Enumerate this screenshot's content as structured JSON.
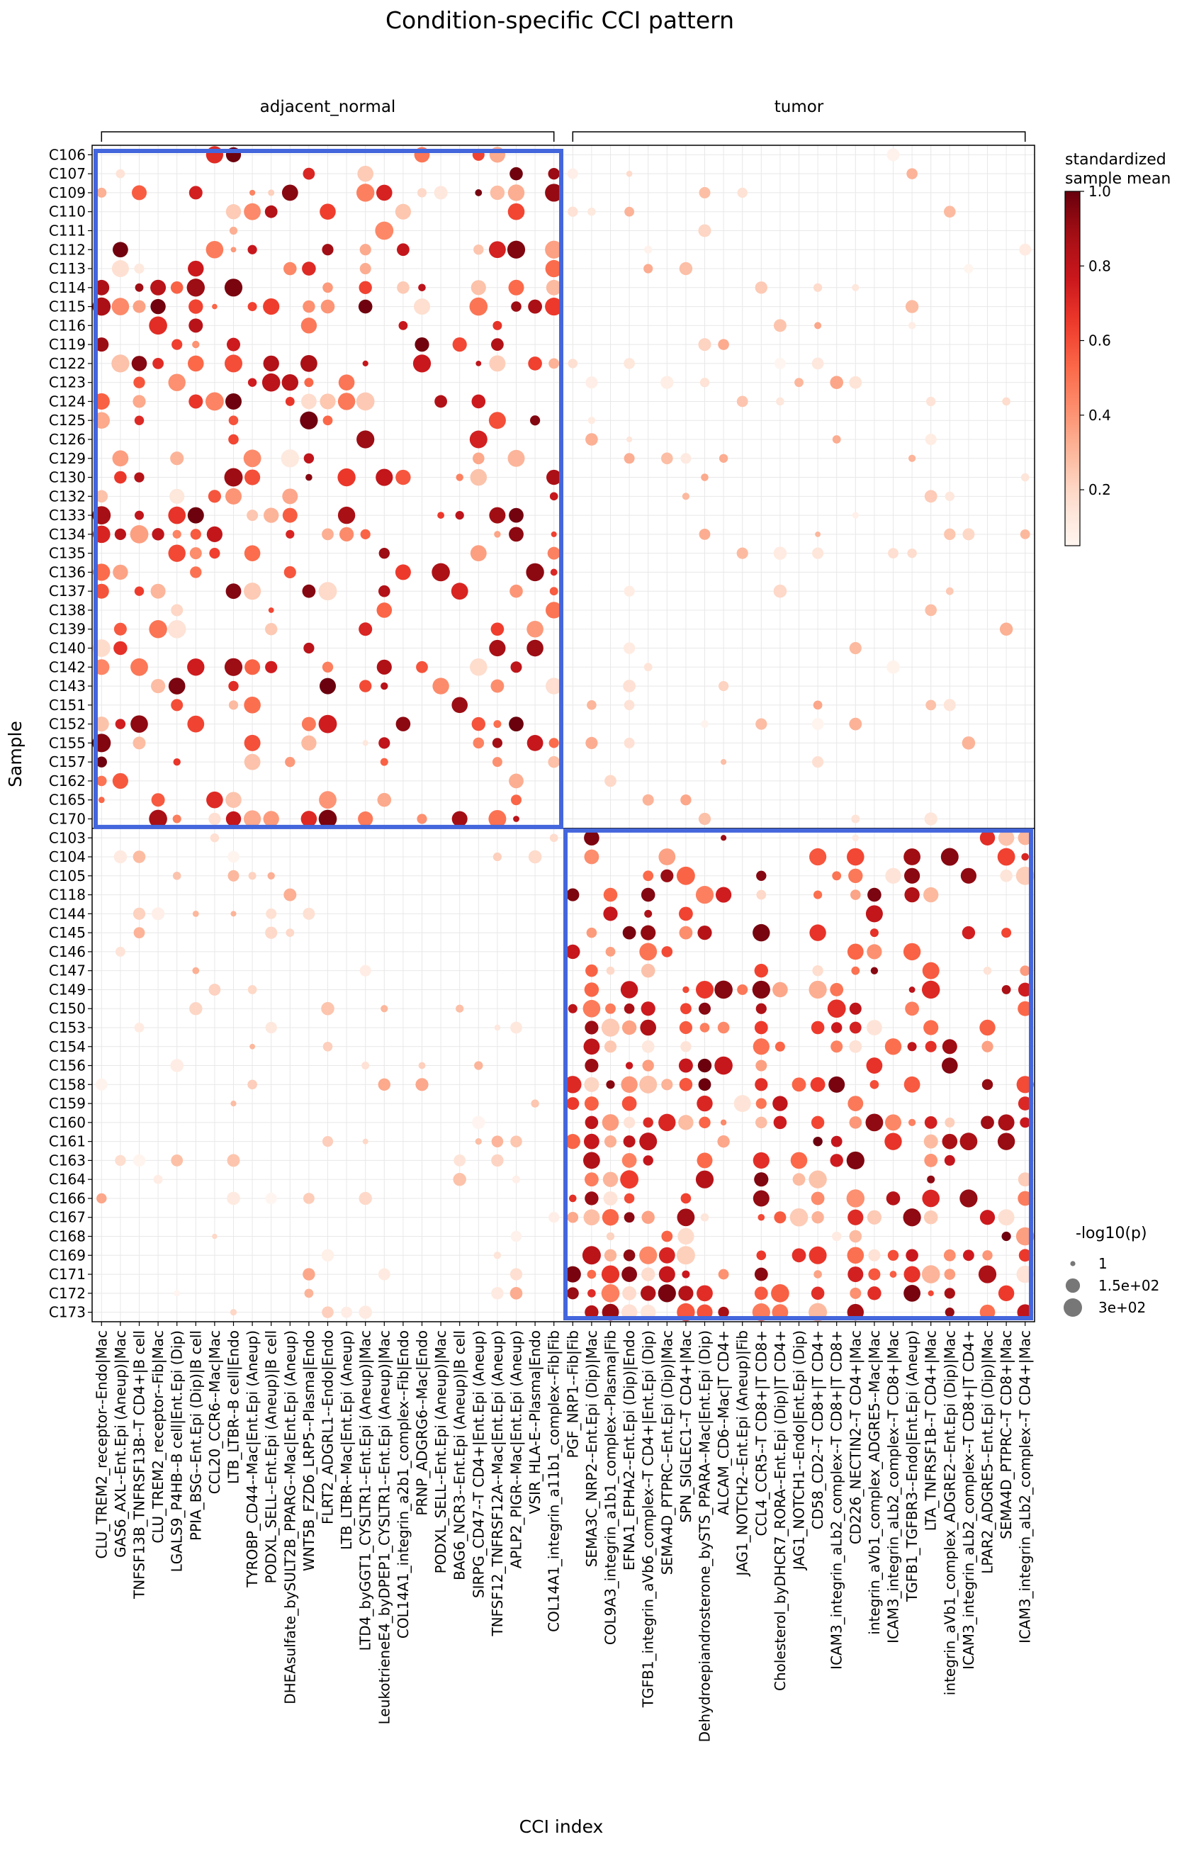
{
  "chart_data": {
    "type": "scatter",
    "title": "Condition-specific CCI pattern",
    "xlabel": "CCI index",
    "ylabel": "Sample",
    "groups": [
      "adjacent_normal",
      "tumor"
    ],
    "columns": [
      "CLU_TREM2_receptor--Endo|Mac",
      "GAS6_AXL--Ent.Epi (Aneup)|Mac",
      "TNFSF13B_TNFRSF13B--T CD4+|B cell",
      "CLU_TREM2_receptor--Fib|Mac",
      "LGALS9_P4HB--B cell|Ent.Epi (Dip)",
      "PPIA_BSG--Ent.Epi (Dip)|B cell",
      "CCL20_CCR6--Mac|Mac",
      "LTB_LTBR--B cell|Endo",
      "TYROBP_CD44--Mac|Ent.Epi (Aneup)",
      "PODXL_SELL--Ent.Epi (Aneup)|B cell",
      "DHEAsulfate_bySULT2B_PPARG--Mac|Ent.Epi (Aneup)",
      "WNT5B_FZD6_LRP5--Plasma|Endo",
      "FLRT2_ADGRL1--Endo|Endo",
      "LTB_LTBR--Mac|Ent.Epi (Aneup)",
      "LTD4_byGGT1_CYSLTR1--Ent.Epi (Aneup)|Mac",
      "LeukotrieneE4_byDPEP1_CYSLTR1--Ent.Epi (Aneup)|Mac",
      "COL14A1_integrin_a2b1_complex--Fib|Endo",
      "PRNP_ADGRG6--Mac|Endo",
      "PODXL_SELL--Ent.Epi (Aneup)|Mac",
      "BAG6_NCR3--Ent.Epi (Aneup)|B cell",
      "SIRPG_CD47--T CD4+|Ent.Epi (Aneup)",
      "TNFSF12_TNFRSF12A--Mac|Ent.Epi (Aneup)",
      "APLP2_PIGR--Mac|Ent.Epi (Aneup)",
      "VSIR_HLA-E--Plasma|Endo",
      "COL14A1_integrin_a11b1_complex--Fib|Fib",
      "PGF_NRP1--Fib|Fib",
      "SEMA3C_NRP2--Ent.Epi (Dip)|Mac",
      "COL9A3_integrin_a1b1_complex--Plasma|Fib",
      "EFNA1_EPHA2--Ent.Epi (Dip)|Endo",
      "TGFB1_integrin_aVb6_complex--T CD4+|Ent.Epi (Dip)",
      "SEMA4D_PTPRC--Ent.Epi (Dip)|Mac",
      "SPN_SIGLEC1--T CD4+|Mac",
      "Dehydroepiandrosterone_bySTS_PPARA--Mac|Ent.Epi (Dip)",
      "ALCAM_CD6--Mac|T CD4+",
      "JAG1_NOTCH2--Ent.Epi (Aneup)|Fib",
      "CCL4_CCR5--T CD8+|T CD8+",
      "Cholesterol_byDHCR7_RORA--Ent.Epi (Dip)|T CD4+",
      "JAG1_NOTCH1--Endo|Ent.Epi (Dip)",
      "CD58_CD2--T CD8+|T CD4+",
      "ICAM3_integrin_aLb2_complex--T CD8+|T CD8+",
      "CD226_NECTIN2--T CD4+|Mac",
      "integrin_aVb1_complex_ADGRE5--Mac|Mac",
      "ICAM3_integrin_aLb2_complex--T CD8+|Mac",
      "TGFB1_TGFBR3--Endo|Ent.Epi (Aneup)",
      "LTA_TNFRSF1B--T CD4+|Mac",
      "integrin_aVb1_complex_ADGRE2--Ent.Epi (Dip)|Mac",
      "ICAM3_integrin_aLb2_complex--T CD8+|T CD4+",
      "LPAR2_ADGRE5--Ent.Epi (Dip)|Mac",
      "SEMA4D_PTPRC--T CD8+|Mac",
      "ICAM3_integrin_aLb2_complex--T CD4+|Mac"
    ],
    "rows": [
      "C106",
      "C107",
      "C109",
      "C110",
      "C111",
      "C112",
      "C113",
      "C114",
      "C115",
      "C116",
      "C119",
      "C122",
      "C123",
      "C124",
      "C125",
      "C126",
      "C129",
      "C130",
      "C132",
      "C133",
      "C134",
      "C135",
      "C136",
      "C137",
      "C138",
      "C139",
      "C140",
      "C142",
      "C143",
      "C151",
      "C152",
      "C155",
      "C157",
      "C162",
      "C165",
      "C170",
      "C103",
      "C104",
      "C105",
      "C118",
      "C144",
      "C145",
      "C146",
      "C147",
      "C149",
      "C150",
      "C153",
      "C154",
      "C156",
      "C158",
      "C159",
      "C160",
      "C161",
      "C163",
      "C164",
      "C166",
      "C167",
      "C168",
      "C169",
      "C171",
      "C172",
      "C173"
    ],
    "normal_row_count": 36,
    "normal_column_count": 25,
    "colorbar": {
      "title": "standardized\nsample mean",
      "ticks": [
        0.2,
        0.4,
        0.6,
        0.8,
        1.0
      ],
      "tick_labels": [
        "0.2",
        "0.4",
        "0.6",
        "0.8",
        "1.0"
      ],
      "range": [
        0.05,
        1.0
      ],
      "colormap": "Reds"
    },
    "size_legend": {
      "title": "-log10(p)",
      "entries": [
        {
          "label": "1",
          "value": 1
        },
        {
          "label": "1.5e+02",
          "value": 150
        },
        {
          "label": "3e+02",
          "value": 300
        }
      ]
    },
    "highlight_color": "#4466dd",
    "grid": true
  }
}
